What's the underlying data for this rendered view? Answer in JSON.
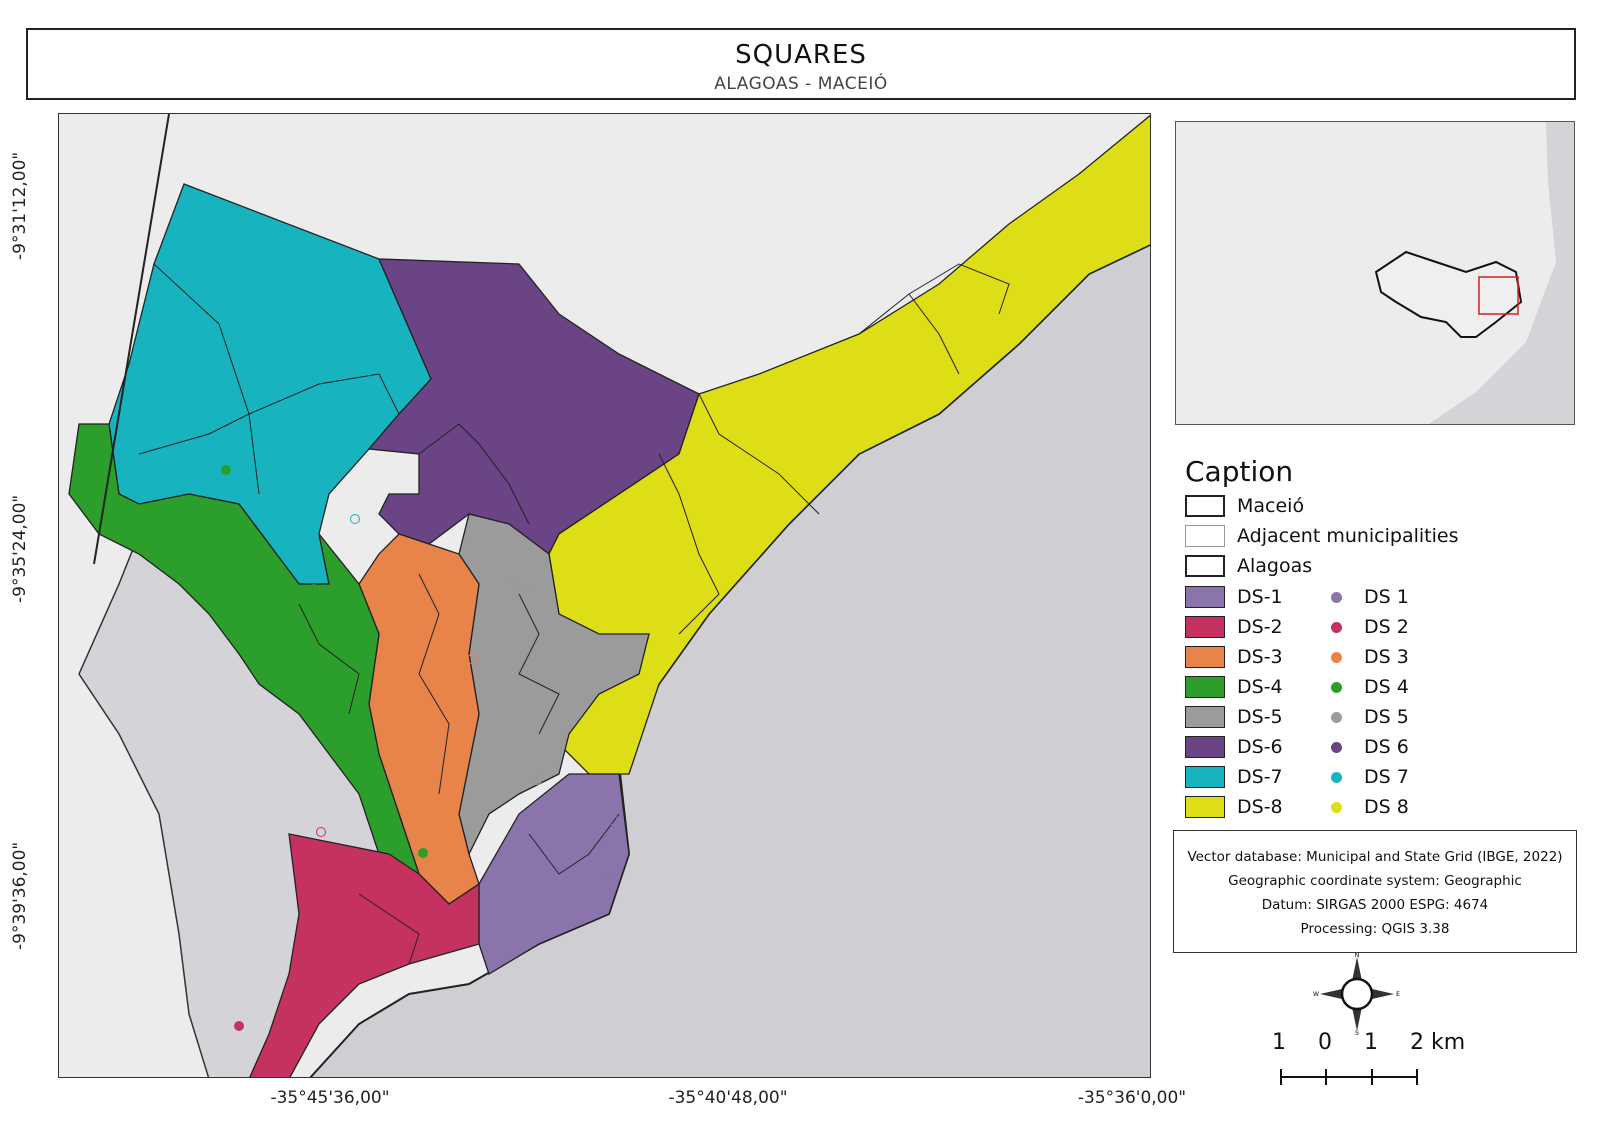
{
  "header": {
    "title": "SQUARES",
    "subtitle": "ALAGOAS - MACEIÓ"
  },
  "axes": {
    "x_labels": [
      "-35°45'36,00\"",
      "-35°40'48,00\"",
      "-35°36'0,00\""
    ],
    "y_labels": [
      "-9°31'12,00\"",
      "-9°35'24,00\"",
      "-9°39'36,00\""
    ]
  },
  "legend": {
    "title": "Caption",
    "boundaries": [
      {
        "label": "Maceió",
        "style": "thick"
      },
      {
        "label": "Adjacent municipalities",
        "style": "thin"
      },
      {
        "label": "Alagoas",
        "style": "thick"
      }
    ],
    "districts": [
      {
        "label": "DS-1",
        "point_label": "DS 1",
        "color": "#8b74ab",
        "point_color": "#8b74ab"
      },
      {
        "label": "DS-2",
        "point_label": "DS 2",
        "color": "#c6325f",
        "point_color": "#c6325f"
      },
      {
        "label": "DS-3",
        "point_label": "DS 3",
        "color": "#e8844a",
        "point_color": "#e8844a"
      },
      {
        "label": "DS-4",
        "point_label": "DS 4",
        "color": "#2b9e2b",
        "point_color": "#2b9e2b"
      },
      {
        "label": "DS-5",
        "point_label": "DS 5",
        "color": "#9b9b9b",
        "point_color": "#9b9b9b"
      },
      {
        "label": "DS-6",
        "point_label": "DS 6",
        "color": "#6b4486",
        "point_color": "#6b4486"
      },
      {
        "label": "DS-7",
        "point_label": "DS 7",
        "color": "#17b3be",
        "point_color": "#17b3be"
      },
      {
        "label": "DS-8",
        "point_label": "DS 8",
        "color": "#dede17",
        "point_color": "#dede17"
      }
    ]
  },
  "credits": [
    "Vector database: Municipal and State Grid (IBGE, 2022)",
    "Geographic coordinate system: Geographic",
    "Datum: SIRGAS 2000 ESPG: 4674",
    "Processing: QGIS 3.38"
  ],
  "compass": {
    "n": "N",
    "s": "S",
    "e": "E",
    "w": "W"
  },
  "scale_bar": {
    "labels": [
      "1",
      "0",
      "1",
      "2 km"
    ]
  },
  "colors": {
    "ocean": "#cfcfd3",
    "land": "#ececec",
    "inset_highlight": "#d62020"
  }
}
